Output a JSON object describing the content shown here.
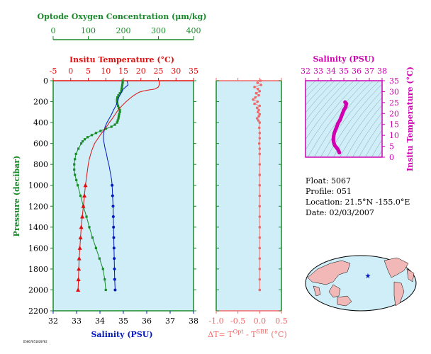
{
  "colors": {
    "oxygen": "#1a8a2a",
    "temperature": "#e01010",
    "salinity_main": "#0018c0",
    "dt": "#f06868",
    "salinity_inset": "#d000b0",
    "panel_bg": "#cfeef8",
    "map_land": "#f2b8b8"
  },
  "labels": {
    "oxygen_axis": "Optode Oxygen Concentration (μm/kg)",
    "temp_axis": "Insitu Temperature (°C)",
    "pressure_axis": "Pressure (decibar)",
    "salinity_axis": "Salinity (PSU)",
    "dt_axis_prefix": "ΔT= T",
    "dt_sup1": "Opt",
    "dt_mid": " - T",
    "dt_sup2": "SBE",
    "dt_suffix": " (°C)",
    "inset_salinity_axis": "Salinity (PSU)",
    "inset_temp_axis": "Insitu Temperature (°C)",
    "footer_tag": "D5067051020702"
  },
  "info": {
    "float": "Float:  5067",
    "profile": "Profile:  051",
    "location": "Location:  21.5°N  -155.0°E",
    "date": "Date:  02/03/2007"
  },
  "chart_data": [
    {
      "type": "line",
      "panel": "profile",
      "y_axis": {
        "label": "Pressure (decibar)",
        "range": [
          2200,
          0
        ],
        "ticks": [
          0,
          200,
          400,
          600,
          800,
          1000,
          1200,
          1400,
          1600,
          1800,
          2000,
          2200
        ]
      },
      "x_axes": [
        {
          "label": "Optode Oxygen Concentration (μm/kg)",
          "range": [
            0,
            400
          ],
          "ticks": [
            0,
            100,
            200,
            300,
            400
          ]
        },
        {
          "label": "Insitu Temperature (°C)",
          "range": [
            -5,
            35
          ],
          "ticks": [
            -5,
            0,
            5,
            10,
            15,
            20,
            25,
            30,
            35
          ]
        },
        {
          "label": "Salinity (PSU)",
          "range": [
            32,
            38
          ],
          "ticks": [
            32,
            33,
            34,
            35,
            36,
            37,
            38
          ]
        }
      ],
      "series": [
        {
          "axis": "oxygen",
          "style": "points-line",
          "pressure": [
            0,
            20,
            40,
            60,
            80,
            100,
            120,
            140,
            160,
            180,
            200,
            220,
            240,
            260,
            280,
            300,
            320,
            340,
            360,
            380,
            400,
            420,
            440,
            460,
            480,
            500,
            520,
            540,
            560,
            580,
            600,
            650,
            700,
            750,
            800,
            850,
            900,
            950,
            1000,
            1100,
            1200,
            1300,
            1400,
            1500,
            1600,
            1700,
            1800,
            1900,
            2000
          ],
          "values": [
            198,
            198,
            197,
            196,
            195,
            194,
            190,
            186,
            183,
            182,
            182,
            183,
            185,
            187,
            190,
            190,
            188,
            187,
            186,
            184,
            182,
            176,
            166,
            150,
            135,
            122,
            110,
            98,
            90,
            84,
            80,
            72,
            65,
            62,
            60,
            60,
            62,
            66,
            70,
            78,
            86,
            95,
            103,
            112,
            122,
            132,
            142,
            147,
            150
          ]
        },
        {
          "axis": "temperature",
          "style": "line",
          "pressure": [
            0,
            20,
            40,
            60,
            80,
            90,
            100,
            110,
            120,
            140,
            160,
            180,
            200,
            240,
            280,
            320,
            360,
            400,
            440,
            480,
            520,
            560,
            600,
            650,
            700,
            750,
            800,
            850,
            900,
            950,
            1000
          ],
          "values": [
            25.3,
            25.2,
            25.2,
            25.0,
            24.0,
            22.0,
            20.5,
            19.5,
            19.0,
            18.0,
            17.2,
            16.5,
            15.8,
            14.6,
            13.5,
            12.7,
            11.9,
            11.0,
            10.2,
            9.3,
            8.4,
            7.6,
            6.8,
            6.2,
            5.7,
            5.3,
            5.0,
            4.8,
            4.6,
            4.4,
            4.2
          ]
        },
        {
          "axis": "temperature",
          "style": "points-line",
          "pressure": [
            1000,
            1100,
            1200,
            1300,
            1400,
            1500,
            1600,
            1700,
            1800,
            1900,
            2000
          ],
          "values": [
            4.2,
            3.9,
            3.6,
            3.3,
            3.0,
            2.8,
            2.6,
            2.4,
            2.3,
            2.2,
            2.1
          ]
        },
        {
          "axis": "salinity",
          "style": "line",
          "pressure": [
            0,
            20,
            40,
            60,
            80,
            100,
            120,
            140,
            160,
            180,
            200,
            240,
            280,
            320,
            360,
            400,
            440,
            480,
            520,
            560,
            600,
            650,
            700,
            750,
            800,
            850,
            900,
            950,
            1000
          ],
          "values": [
            35.15,
            35.18,
            35.2,
            35.1,
            35.0,
            34.95,
            34.9,
            34.85,
            34.8,
            34.78,
            34.75,
            34.68,
            34.58,
            34.5,
            34.4,
            34.3,
            34.22,
            34.18,
            34.15,
            34.15,
            34.18,
            34.22,
            34.28,
            34.32,
            34.38,
            34.42,
            34.46,
            34.5,
            34.52
          ]
        },
        {
          "axis": "salinity",
          "style": "points-line",
          "pressure": [
            1000,
            1100,
            1200,
            1300,
            1400,
            1500,
            1600,
            1700,
            1800,
            1900,
            2000
          ],
          "values": [
            34.52,
            34.54,
            34.56,
            34.57,
            34.58,
            34.59,
            34.6,
            34.61,
            34.62,
            34.63,
            34.65
          ]
        }
      ]
    },
    {
      "type": "scatter",
      "panel": "delta_t",
      "x_axis": {
        "range": [
          -1.0,
          0.5
        ],
        "ticks": [
          -1.0,
          -0.5,
          0.0,
          0.5
        ]
      },
      "y_axis": {
        "range": [
          2200,
          0
        ]
      },
      "pressure": [
        0,
        20,
        40,
        60,
        80,
        100,
        120,
        140,
        160,
        180,
        200,
        220,
        240,
        260,
        280,
        300,
        320,
        340,
        360,
        380,
        400,
        450,
        500,
        550,
        600,
        650,
        700,
        800,
        900,
        1000,
        1100,
        1200,
        1300,
        1400,
        1500,
        1600,
        1700,
        1800,
        1900,
        2000
      ],
      "values": [
        0.02,
        -0.05,
        0.03,
        -0.12,
        -0.04,
        0.0,
        -0.08,
        -0.02,
        -0.1,
        -0.15,
        -0.05,
        -0.12,
        0.0,
        -0.06,
        -0.02,
        -0.04,
        0.0,
        -0.02,
        -0.06,
        -0.03,
        0.0,
        -0.01,
        0.0,
        0.0,
        -0.01,
        0.0,
        0.0,
        0.0,
        0.0,
        0.0,
        0.0,
        0.0,
        0.0,
        0.0,
        0.0,
        0.0,
        0.0,
        0.0,
        0.0,
        0.0
      ]
    },
    {
      "type": "line",
      "panel": "ts_inset",
      "x_axis": {
        "label": "Salinity (PSU)",
        "range": [
          32,
          38
        ],
        "ticks": [
          32,
          33,
          34,
          35,
          36,
          37,
          38
        ]
      },
      "y_axis": {
        "label": "Insitu Temperature (°C)",
        "range": [
          0,
          35
        ],
        "ticks": [
          0,
          5,
          10,
          15,
          20,
          25,
          30,
          35
        ]
      },
      "salinity": [
        35.1,
        35.2,
        35.15,
        35.0,
        34.9,
        34.8,
        34.7,
        34.55,
        34.45,
        34.35,
        34.25,
        34.2,
        34.18,
        34.2,
        34.25,
        34.3,
        34.4,
        34.48,
        34.55,
        34.6,
        34.65
      ],
      "temperature": [
        25.2,
        24.5,
        23.0,
        21.5,
        20.0,
        18.5,
        17.0,
        15.5,
        14.0,
        12.5,
        11.0,
        9.5,
        8.0,
        7.0,
        6.0,
        5.3,
        4.6,
        4.0,
        3.4,
        2.8,
        2.1
      ]
    }
  ]
}
